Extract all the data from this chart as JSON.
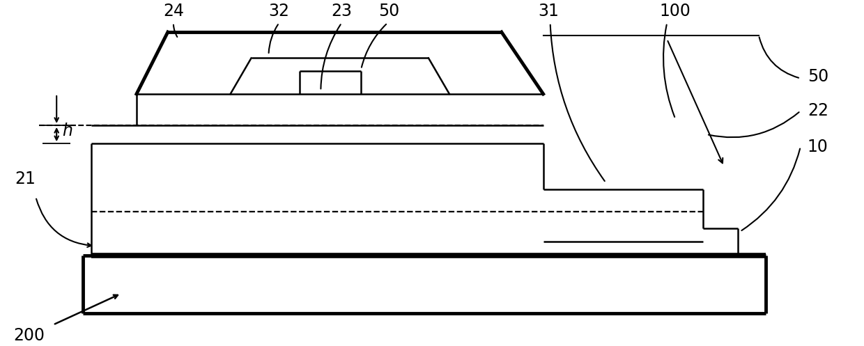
{
  "bg_color": "#ffffff",
  "line_color": "#000000",
  "lw": 1.8,
  "lw_thick": 3.5,
  "fontsize": 17,
  "fig_w": 12.4,
  "fig_h": 4.97
}
